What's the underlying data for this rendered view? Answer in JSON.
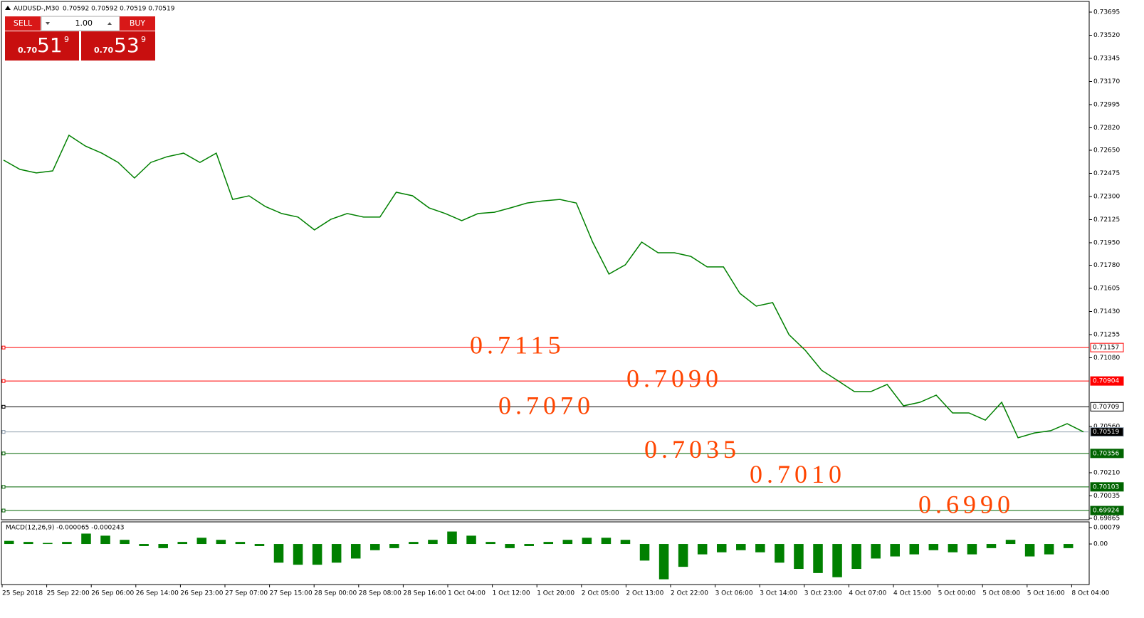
{
  "header": {
    "symbol": "AUDUSD-,M30",
    "ohlc": "0.70592 0.70592 0.70519 0.70519"
  },
  "trade_panel": {
    "sell": "SELL",
    "lot": "1.00",
    "buy": "BUY",
    "bid_prefix": "0.70",
    "bid_big": "51",
    "bid_small": "9",
    "ask_prefix": "0.70",
    "ask_big": "53",
    "ask_small": "9"
  },
  "chart": {
    "type": "line",
    "color": "#008000",
    "ylim": [
      0.69865,
      0.73695
    ],
    "yticks": [
      {
        "value": 0.73695,
        "label": "0.73695"
      },
      {
        "value": 0.7352,
        "label": "0.73520"
      },
      {
        "value": 0.73345,
        "label": "0.73345"
      },
      {
        "value": 0.7317,
        "label": "0.73170"
      },
      {
        "value": 0.72995,
        "label": "0.72995"
      },
      {
        "value": 0.7282,
        "label": "0.72820"
      },
      {
        "value": 0.7265,
        "label": "0.72650"
      },
      {
        "value": 0.72475,
        "label": "0.72475"
      },
      {
        "value": 0.723,
        "label": "0.72300"
      },
      {
        "value": 0.72125,
        "label": "0.72125"
      },
      {
        "value": 0.7195,
        "label": "0.71950"
      },
      {
        "value": 0.7178,
        "label": "0.71780"
      },
      {
        "value": 0.71605,
        "label": "0.71605"
      },
      {
        "value": 0.7143,
        "label": "0.71430"
      },
      {
        "value": 0.71255,
        "label": "0.71255"
      },
      {
        "value": 0.7108,
        "label": "0.71080"
      },
      {
        "value": 0.7056,
        "label": "0.70560"
      },
      {
        "value": 0.7021,
        "label": "0.70210"
      },
      {
        "value": 0.70035,
        "label": "0.70035"
      },
      {
        "value": 0.69865,
        "label": "0.69865"
      }
    ],
    "levels": [
      {
        "value": 0.71157,
        "axis_label": "0.71157",
        "note": "0.7115",
        "color": "#ff0000",
        "tag_bg": "#ffffff",
        "tag_fg": "#000000"
      },
      {
        "value": 0.70904,
        "axis_label": "0.70904",
        "note": "0.7090",
        "color": "#ff0000",
        "tag_bg": "#ff0000",
        "tag_fg": "#ffffff"
      },
      {
        "value": 0.70709,
        "axis_label": "0.70709",
        "note": "0.7070",
        "color": "#000000",
        "tag_bg": "#ffffff",
        "tag_fg": "#000000"
      },
      {
        "value": 0.70519,
        "axis_label": "0.70519",
        "color": "#8c9bab",
        "tag_bg": "#000000",
        "tag_fg": "#ffffff"
      },
      {
        "value": 0.70356,
        "axis_label": "0.70356",
        "note": "0.7035",
        "color": "#006400",
        "tag_bg": "#006400",
        "tag_fg": "#ffffff"
      },
      {
        "value": 0.70103,
        "axis_label": "0.70103",
        "note": "0.7010",
        "color": "#006400",
        "tag_bg": "#006400",
        "tag_fg": "#ffffff"
      },
      {
        "value": 0.69924,
        "axis_label": "0.69924",
        "note": "0.6990",
        "color": "#006400",
        "tag_bg": "#006400",
        "tag_fg": "#ffffff"
      }
    ],
    "closes": [
      0.72575,
      0.72505,
      0.72478,
      0.72494,
      0.72763,
      0.72682,
      0.72628,
      0.72558,
      0.7244,
      0.72558,
      0.72601,
      0.72628,
      0.72558,
      0.72628,
      0.72278,
      0.72305,
      0.72224,
      0.72171,
      0.72144,
      0.72047,
      0.72127,
      0.72171,
      0.72144,
      0.72144,
      0.72332,
      0.72305,
      0.72214,
      0.72171,
      0.72117,
      0.72171,
      0.72181,
      0.72214,
      0.72251,
      0.72267,
      0.72278,
      0.72251,
      0.71955,
      0.71713,
      0.71783,
      0.71955,
      0.71874,
      0.71874,
      0.71847,
      0.71767,
      0.71767,
      0.71567,
      0.7147,
      0.71497,
      0.71255,
      0.71136,
      0.70985,
      0.70905,
      0.70824,
      0.70824,
      0.70878,
      0.70716,
      0.70743,
      0.70797,
      0.70662,
      0.70662,
      0.70608,
      0.70743,
      0.70474,
      0.70511,
      0.70528,
      0.70581,
      0.70519
    ],
    "time_labels": [
      "25 Sep 2018",
      "25 Sep 22:00",
      "26 Sep 06:00",
      "26 Sep 14:00",
      "26 Sep 23:00",
      "27 Sep 07:00",
      "27 Sep 15:00",
      "28 Sep 00:00",
      "28 Sep 08:00",
      "28 Sep 16:00",
      "1 Oct 04:00",
      "1 Oct 12:00",
      "1 Oct 20:00",
      "2 Oct 05:00",
      "2 Oct 13:00",
      "2 Oct 22:00",
      "3 Oct 06:00",
      "3 Oct 14:00",
      "3 Oct 23:00",
      "4 Oct 07:00",
      "4 Oct 15:00",
      "5 Oct 00:00",
      "5 Oct 08:00",
      "5 Oct 16:00",
      "8 Oct 04:00"
    ],
    "macd": {
      "title": "MACD(12,26,9) -0.000065 -0.000243",
      "color": "#008000",
      "ylim": [
        -0.00185,
        0.00079
      ],
      "yticks": [
        {
          "value": 0.00079,
          "label": "0.00079"
        },
        {
          "value": 0,
          "label": "0.00"
        }
      ],
      "values": [
        0.00015,
        0.0001,
        5e-05,
        0.0001,
        0.0005,
        0.0004,
        0.0002,
        -0.0001,
        -0.0002,
        0.0001,
        0.0003,
        0.0002,
        0.0001,
        -0.0001,
        -0.0009,
        -0.001,
        -0.001,
        -0.0009,
        -0.0007,
        -0.0003,
        -0.0002,
        0.0001,
        0.0002,
        0.0006,
        0.0004,
        0.0001,
        -0.0002,
        -0.0001,
        0.0001,
        0.0002,
        0.0003,
        0.0003,
        0.0002,
        -0.0008,
        -0.0017,
        -0.0011,
        -0.0005,
        -0.0004,
        -0.0003,
        -0.0004,
        -0.0009,
        -0.0012,
        -0.0014,
        -0.0016,
        -0.0012,
        -0.0007,
        -0.0006,
        -0.0005,
        -0.0003,
        -0.0004,
        -0.0005,
        -0.0002,
        0.0002,
        -0.0006,
        -0.0005,
        -0.0002
      ]
    }
  }
}
